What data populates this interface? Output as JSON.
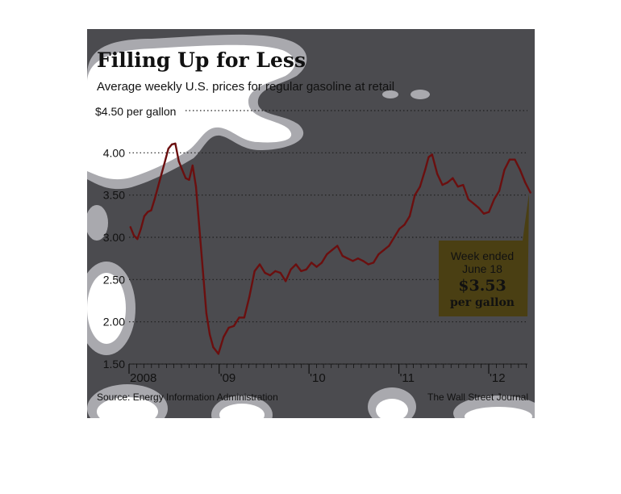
{
  "chart_data": {
    "type": "line",
    "title": "Filling Up for Less",
    "subtitle": "Average weekly U.S. prices for regular gasoline at retail",
    "y_unit_label": "$4.50 per gallon",
    "yticks": [
      "4.00",
      "3.50",
      "3.00",
      "2.50",
      "2.00",
      "1.50"
    ],
    "xticks": [
      "2008",
      "'09",
      "'10",
      "'11",
      "'12"
    ],
    "ylim": [
      1.5,
      4.5
    ],
    "grid": true,
    "series": [
      {
        "color": "#6b0f0f",
        "x": [
          "2008-01-07",
          "2008-01-21",
          "2008-02-04",
          "2008-02-18",
          "2008-03-03",
          "2008-03-17",
          "2008-03-31",
          "2008-04-14",
          "2008-04-28",
          "2008-05-12",
          "2008-05-26",
          "2008-06-09",
          "2008-06-23",
          "2008-07-07",
          "2008-07-21",
          "2008-08-04",
          "2008-08-18",
          "2008-09-01",
          "2008-09-15",
          "2008-09-29",
          "2008-10-13",
          "2008-10-27",
          "2008-11-10",
          "2008-11-24",
          "2008-12-08",
          "2008-12-29",
          "2009-01-19",
          "2009-02-09",
          "2009-03-02",
          "2009-03-23",
          "2009-04-13",
          "2009-05-04",
          "2009-05-25",
          "2009-06-15",
          "2009-07-06",
          "2009-07-27",
          "2009-08-17",
          "2009-09-07",
          "2009-09-28",
          "2009-10-19",
          "2009-11-09",
          "2009-11-30",
          "2009-12-21",
          "2010-01-11",
          "2010-02-01",
          "2010-02-22",
          "2010-03-15",
          "2010-04-05",
          "2010-04-26",
          "2010-05-17",
          "2010-06-07",
          "2010-06-28",
          "2010-07-19",
          "2010-08-09",
          "2010-08-30",
          "2010-09-20",
          "2010-10-11",
          "2010-11-01",
          "2010-11-22",
          "2010-12-13",
          "2011-01-03",
          "2011-01-24",
          "2011-02-14",
          "2011-03-07",
          "2011-03-28",
          "2011-04-18",
          "2011-05-02",
          "2011-05-16",
          "2011-06-06",
          "2011-06-27",
          "2011-07-18",
          "2011-08-08",
          "2011-08-29",
          "2011-09-19",
          "2011-10-10",
          "2011-10-31",
          "2011-11-21",
          "2011-12-12",
          "2012-01-02",
          "2012-01-23",
          "2012-02-13",
          "2012-03-05",
          "2012-03-26",
          "2012-04-16",
          "2012-05-07",
          "2012-05-28",
          "2012-06-18"
        ],
        "y": [
          3.12,
          3.02,
          2.98,
          3.1,
          3.25,
          3.3,
          3.32,
          3.45,
          3.6,
          3.75,
          3.9,
          4.05,
          4.1,
          4.11,
          3.9,
          3.8,
          3.7,
          3.68,
          3.85,
          3.6,
          3.1,
          2.6,
          2.1,
          1.85,
          1.7,
          1.62,
          1.82,
          1.93,
          1.95,
          2.05,
          2.05,
          2.3,
          2.6,
          2.68,
          2.58,
          2.55,
          2.6,
          2.58,
          2.48,
          2.62,
          2.68,
          2.6,
          2.62,
          2.7,
          2.65,
          2.7,
          2.8,
          2.85,
          2.9,
          2.78,
          2.75,
          2.72,
          2.75,
          2.72,
          2.68,
          2.7,
          2.8,
          2.85,
          2.9,
          3.0,
          3.1,
          3.15,
          3.25,
          3.5,
          3.6,
          3.8,
          3.95,
          3.98,
          3.75,
          3.62,
          3.65,
          3.7,
          3.6,
          3.62,
          3.45,
          3.4,
          3.35,
          3.28,
          3.3,
          3.45,
          3.55,
          3.8,
          3.92,
          3.92,
          3.8,
          3.65,
          3.53
        ]
      }
    ],
    "callout": {
      "line1": "Week ended",
      "line2": "June 18",
      "value": "$3.53",
      "unit": "per gallon",
      "color": "#4a3f13"
    }
  },
  "source": "Source: Energy Information Administration",
  "credit": "The Wall Street Journal",
  "colors": {
    "panel_background": "#4b4b4f",
    "grid": "#1e1e1e",
    "line": "#6b0f0f",
    "splotch": "#a9a9ae"
  }
}
